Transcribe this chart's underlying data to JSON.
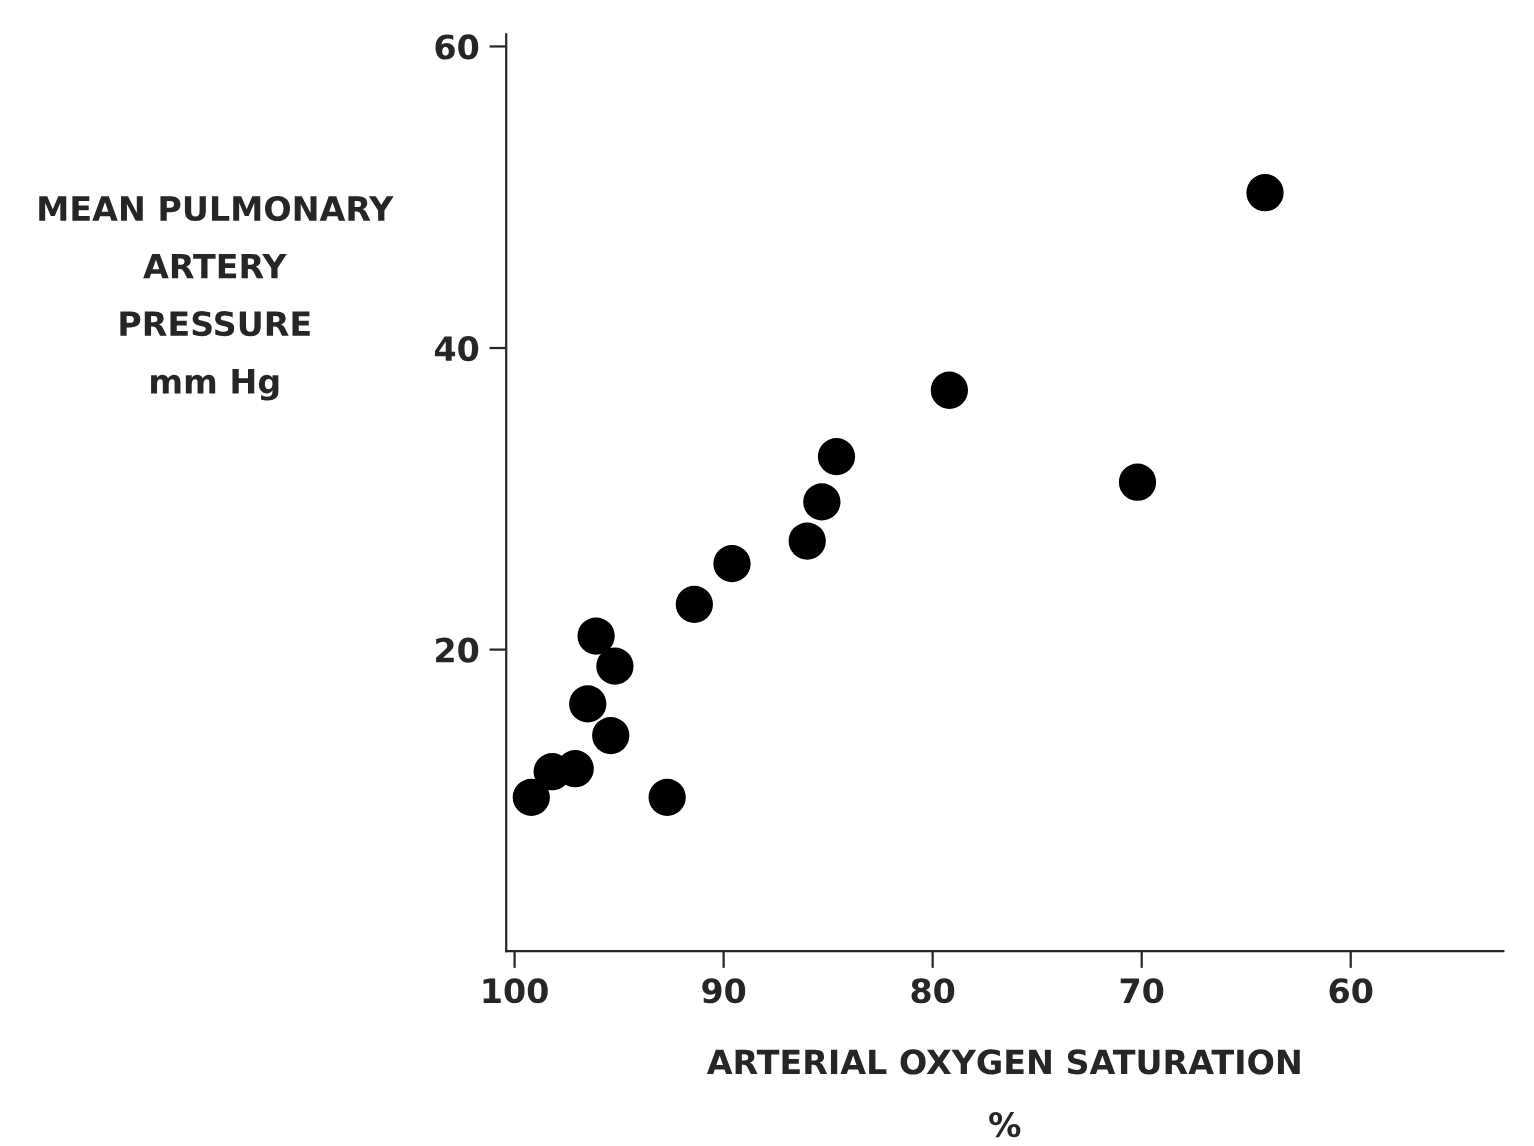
{
  "chart_data": {
    "type": "scatter",
    "xlabel": "ARTERIAL OXYGEN SATURATION\n%",
    "ylabel": "MEAN PULMONARY\nARTERY\nPRESSURE\nmm Hg",
    "x": [
      99.2,
      98.2,
      97.1,
      96.5,
      96.1,
      95.2,
      95.4,
      92.7,
      91.4,
      89.6,
      86.0,
      85.3,
      84.6,
      79.2,
      70.2,
      64.1
    ],
    "values": [
      10.2,
      11.9,
      12.1,
      16.4,
      20.9,
      18.9,
      14.3,
      10.2,
      23.0,
      25.7,
      27.2,
      29.8,
      32.8,
      37.2,
      31.1,
      50.3
    ],
    "color": "#000000",
    "marker": "circle",
    "xlim": [
      100.4,
      52.7
    ],
    "ylim": [
      0,
      60.8
    ],
    "xticks": [
      100,
      90,
      80,
      70,
      60
    ],
    "yticks": [
      20,
      40,
      60
    ],
    "grid": false,
    "legend": false
  }
}
